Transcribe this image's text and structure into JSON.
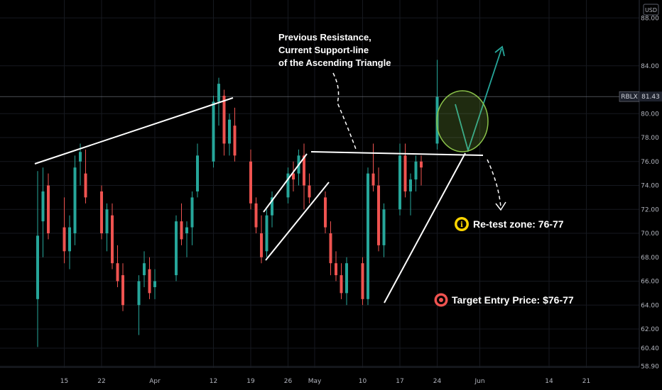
{
  "header": {
    "currency": "USD"
  },
  "price_tag": {
    "symbol": "RBLX",
    "value": "81.43"
  },
  "annotations": {
    "resistance_note": [
      "Previous Resistance,",
      "Current Support-line",
      "of the Ascending Triangle"
    ],
    "retest": "Re-test zone: 76-77",
    "entry": "Target Entry Price: $76-77",
    "info_icon": "info-icon",
    "target_icon": "target-icon"
  },
  "colors": {
    "up": "#26a69a",
    "down": "#ef5350",
    "lines": "#ffffff",
    "arrow": "#26a69a",
    "circle": "#8bc34a"
  },
  "chart_data": {
    "type": "candlestick",
    "symbol": "RBLX",
    "currency": "USD",
    "last_price": 81.43,
    "y_range": [
      58.8,
      89.5
    ],
    "y_ticks": [
      88.0,
      84.0,
      80.0,
      78.0,
      76.0,
      74.0,
      72.0,
      70.0,
      68.0,
      66.0,
      64.0,
      62.0,
      60.4,
      58.9
    ],
    "x_labels": [
      "15",
      "22",
      "Apr",
      "12",
      "19",
      "26",
      "May",
      "10",
      "17",
      "24",
      "Jun",
      "14",
      "21"
    ],
    "candles": [
      [
        "2021-03-10",
        64.5,
        75.2,
        60.5,
        69.8
      ],
      [
        "2021-03-11",
        71.0,
        75.5,
        68.0,
        73.5
      ],
      [
        "2021-03-12",
        74.0,
        75.0,
        69.5,
        70.0
      ],
      [
        "2021-03-15",
        70.5,
        73.0,
        67.5,
        68.5
      ],
      [
        "2021-03-16",
        68.5,
        71.5,
        67.0,
        70.5
      ],
      [
        "2021-03-17",
        70.0,
        76.5,
        69.0,
        75.5
      ],
      [
        "2021-03-18",
        76.0,
        77.5,
        74.0,
        76.8
      ],
      [
        "2021-03-19",
        75.0,
        77.0,
        72.5,
        73.0
      ],
      [
        "2021-03-22",
        73.5,
        74.0,
        69.5,
        70.0
      ],
      [
        "2021-03-23",
        70.0,
        72.5,
        68.5,
        72.0
      ],
      [
        "2021-03-24",
        71.5,
        72.5,
        67.0,
        67.5
      ],
      [
        "2021-03-25",
        67.5,
        69.0,
        65.5,
        66.0
      ],
      [
        "2021-03-26",
        66.5,
        67.5,
        63.5,
        64.0
      ],
      [
        "2021-03-29",
        64.0,
        66.5,
        61.5,
        66.0
      ],
      [
        "2021-03-30",
        66.5,
        68.5,
        65.5,
        67.5
      ],
      [
        "2021-03-31",
        67.0,
        68.0,
        64.5,
        65.0
      ],
      [
        "2021-04-01",
        65.5,
        67.0,
        64.5,
        66.0
      ],
      [
        "2021-04-05",
        66.5,
        71.5,
        66.0,
        71.0
      ],
      [
        "2021-04-06",
        71.0,
        72.5,
        69.0,
        69.5
      ],
      [
        "2021-04-07",
        70.0,
        71.0,
        68.0,
        70.5
      ],
      [
        "2021-04-08",
        70.5,
        73.5,
        69.0,
        73.0
      ],
      [
        "2021-04-09",
        73.5,
        77.5,
        73.0,
        76.5
      ],
      [
        "2021-04-12",
        76.0,
        81.5,
        75.5,
        81.0
      ],
      [
        "2021-04-13",
        81.0,
        83.0,
        79.0,
        82.5
      ],
      [
        "2021-04-14",
        81.5,
        82.0,
        76.5,
        77.5
      ],
      [
        "2021-04-15",
        77.5,
        80.0,
        76.5,
        79.5
      ],
      [
        "2021-04-16",
        79.0,
        80.5,
        76.0,
        76.5
      ],
      [
        "2021-04-19",
        76.0,
        77.0,
        72.0,
        72.5
      ],
      [
        "2021-04-20",
        72.5,
        73.0,
        70.0,
        70.5
      ],
      [
        "2021-04-21",
        70.0,
        71.5,
        67.5,
        68.0
      ],
      [
        "2021-04-22",
        68.5,
        72.0,
        68.0,
        71.5
      ],
      [
        "2021-04-23",
        71.5,
        73.5,
        70.5,
        73.0
      ],
      [
        "2021-04-26",
        73.0,
        75.5,
        72.5,
        75.0
      ],
      [
        "2021-04-27",
        75.0,
        76.0,
        73.5,
        74.5
      ],
      [
        "2021-04-28",
        75.0,
        77.0,
        74.0,
        76.5
      ],
      [
        "2021-04-29",
        76.5,
        77.5,
        72.0,
        74.0
      ],
      [
        "2021-04-30",
        74.0,
        75.0,
        72.5,
        73.0
      ],
      [
        "2021-05-03",
        73.0,
        73.5,
        70.0,
        70.5
      ],
      [
        "2021-05-04",
        70.0,
        71.0,
        66.5,
        67.5
      ],
      [
        "2021-05-05",
        67.5,
        68.5,
        66.0,
        66.5
      ],
      [
        "2021-05-06",
        66.5,
        67.5,
        64.5,
        65.0
      ],
      [
        "2021-05-07",
        65.0,
        68.0,
        64.0,
        67.5
      ],
      [
        "2021-05-10",
        67.5,
        68.0,
        64.0,
        64.5
      ],
      [
        "2021-05-11",
        64.5,
        75.5,
        64.0,
        75.0
      ],
      [
        "2021-05-12",
        75.0,
        77.5,
        73.5,
        74.0
      ],
      [
        "2021-05-13",
        74.0,
        75.5,
        68.5,
        69.0
      ],
      [
        "2021-05-14",
        69.0,
        72.5,
        68.0,
        72.0
      ],
      [
        "2021-05-17",
        72.0,
        77.5,
        71.5,
        76.5
      ],
      [
        "2021-05-18",
        76.5,
        77.5,
        73.0,
        73.5
      ],
      [
        "2021-05-19",
        73.5,
        75.0,
        71.5,
        74.5
      ],
      [
        "2021-05-20",
        74.5,
        76.5,
        73.5,
        76.0
      ],
      [
        "2021-05-21",
        76.0,
        76.5,
        74.0,
        75.5
      ],
      [
        "2021-05-24",
        77.5,
        84.5,
        77.0,
        81.4
      ]
    ]
  }
}
